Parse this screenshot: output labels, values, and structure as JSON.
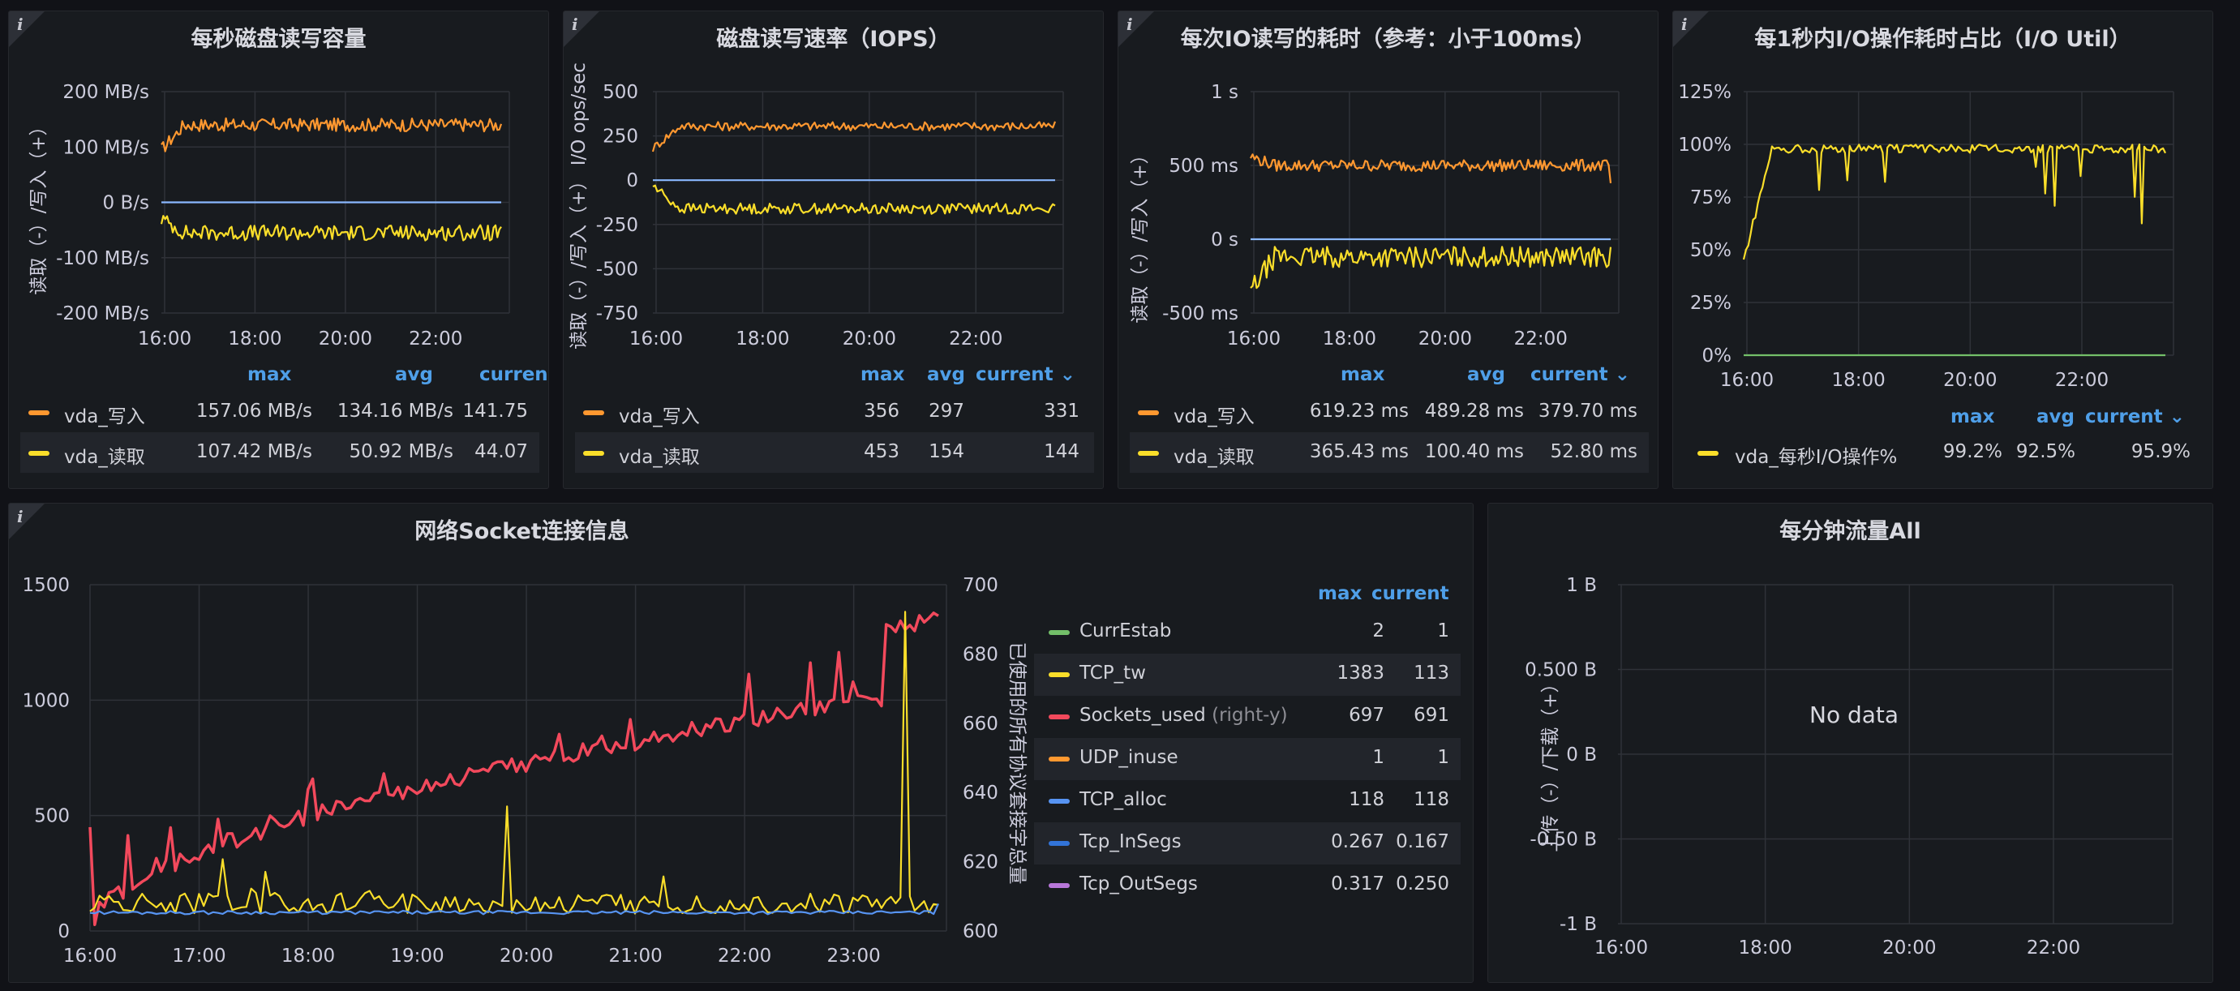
{
  "panels": {
    "disk_throughput": {
      "title": "每秒磁盘读写容量",
      "info_icon": "info-icon",
      "legend_headers": {
        "max": "max",
        "avg": "avg",
        "current": "curren"
      },
      "legend": [
        {
          "name": "vda_写入",
          "color": "#ff9830",
          "max": "157.06 MB/s",
          "avg": "134.16 MB/s",
          "current": "141.75"
        },
        {
          "name": "vda_读取",
          "color": "#fade2a",
          "max": "107.42 MB/s",
          "avg": "50.92 MB/s",
          "current": "44.07"
        }
      ]
    },
    "disk_iops": {
      "title": "磁盘读写速率（IOPS）",
      "info_icon": "info-icon",
      "legend_headers": {
        "max": "max",
        "avg": "avg",
        "current": "current"
      },
      "legend": [
        {
          "name": "vda_写入",
          "color": "#ff9830",
          "max": "356",
          "avg": "297",
          "current": "331"
        },
        {
          "name": "vda_读取",
          "color": "#fade2a",
          "max": "453",
          "avg": "154",
          "current": "144"
        }
      ]
    },
    "io_latency": {
      "title": "每次IO读写的耗时（参考：小于100ms）",
      "info_icon": "info-icon",
      "legend_headers": {
        "max": "max",
        "avg": "avg",
        "current": "current"
      },
      "legend": [
        {
          "name": "vda_写入",
          "color": "#ff9830",
          "max": "619.23 ms",
          "avg": "489.28 ms",
          "current": "379.70 ms"
        },
        {
          "name": "vda_读取",
          "color": "#fade2a",
          "max": "365.43 ms",
          "avg": "100.40 ms",
          "current": "52.80 ms"
        }
      ]
    },
    "io_util": {
      "title": "每1秒内I/O操作耗时占比（I/O Util）",
      "info_icon": "info-icon",
      "legend_headers": {
        "max": "max",
        "avg": "avg",
        "current": "current"
      },
      "legend": [
        {
          "name": "vda_每秒I/O操作%",
          "color": "#fade2a",
          "max": "99.2%",
          "avg": "92.5%",
          "current": "95.9%"
        }
      ]
    },
    "socket": {
      "title": "网络Socket连接信息",
      "info_icon": "info-icon",
      "legend_headers": {
        "max": "max",
        "current": "current"
      },
      "legend": [
        {
          "name": "CurrEstab",
          "hint": "",
          "color": "#73bf69",
          "max": "2",
          "current": "1"
        },
        {
          "name": "TCP_tw",
          "hint": "",
          "color": "#fade2a",
          "max": "1383",
          "current": "113"
        },
        {
          "name": "Sockets_used",
          "hint": "(right-y)",
          "color": "#f2495c",
          "max": "697",
          "current": "691"
        },
        {
          "name": "UDP_inuse",
          "hint": "",
          "color": "#ff9830",
          "max": "1",
          "current": "1"
        },
        {
          "name": "TCP_alloc",
          "hint": "",
          "color": "#5794f2",
          "max": "118",
          "current": "118"
        },
        {
          "name": "Tcp_InSegs",
          "hint": "",
          "color": "#3274d9",
          "max": "0.267",
          "current": "0.167"
        },
        {
          "name": "Tcp_OutSegs",
          "hint": "",
          "color": "#b877d9",
          "max": "0.317",
          "current": "0.250"
        }
      ]
    },
    "traffic": {
      "title": "每分钟流量All",
      "no_data": "No data"
    }
  },
  "chart_data": [
    {
      "id": "disk_throughput",
      "type": "line",
      "title": "每秒磁盘读写容量",
      "ylabel": "读取（-）/写入（+）",
      "y_unit": "MB/s",
      "ylim": [
        -200,
        200
      ],
      "y_ticks": [
        "200 MB/s",
        "100 MB/s",
        "0 B/s",
        "-100 MB/s",
        "-200 MB/s"
      ],
      "x_ticks": [
        "16:00",
        "18:00",
        "20:00",
        "22:00"
      ],
      "xlim": [
        "15:58",
        "23:57"
      ],
      "series": [
        {
          "name": "vda_写入",
          "color": "#ff9830",
          "approx_level": 140,
          "noise": 12,
          "start": 95,
          "end": 141.75
        },
        {
          "name": "vda_读取",
          "color": "#fade2a",
          "approx_level": -55,
          "noise": 14,
          "start": -30,
          "end": -44.07
        },
        {
          "name": "zero",
          "color": "#8ab8ff",
          "approx_level": 0,
          "noise": 0
        }
      ]
    },
    {
      "id": "disk_iops",
      "type": "line",
      "title": "磁盘读写速率（IOPS）",
      "ylabel": "读取（-）/写入（+） I/O ops/sec",
      "ylim": [
        -750,
        500
      ],
      "y_ticks": [
        "500",
        "250",
        "0",
        "-250",
        "-500",
        "-750"
      ],
      "x_ticks": [
        "16:00",
        "18:00",
        "20:00",
        "22:00"
      ],
      "series": [
        {
          "name": "vda_写入",
          "color": "#ff9830",
          "approx_level": 305,
          "noise": 25,
          "start": 180,
          "end": 331
        },
        {
          "name": "vda_读取",
          "color": "#fade2a",
          "approx_level": -160,
          "noise": 30,
          "start": -30,
          "end": -144
        },
        {
          "name": "zero",
          "color": "#8ab8ff",
          "approx_level": 0,
          "noise": 0
        }
      ]
    },
    {
      "id": "io_latency",
      "type": "line",
      "title": "每次IO读写的耗时（参考：小于100ms）",
      "ylabel": "读取（-）/写入（+）",
      "y_unit": "ms",
      "ylim": [
        -500,
        1000
      ],
      "y_ticks": [
        "1 s",
        "500 ms",
        "0 s",
        "-500 ms"
      ],
      "x_ticks": [
        "16:00",
        "18:00",
        "20:00",
        "22:00"
      ],
      "series": [
        {
          "name": "vda_写入",
          "color": "#ff9830",
          "approx_level": 500,
          "noise": 40,
          "start": 560,
          "end": 379.7
        },
        {
          "name": "vda_读取",
          "color": "#fade2a",
          "approx_level": -120,
          "noise": 70,
          "start": -350,
          "end": -52.8
        },
        {
          "name": "zero",
          "color": "#8ab8ff",
          "approx_level": 0,
          "noise": 0
        }
      ]
    },
    {
      "id": "io_util",
      "type": "line",
      "title": "每1秒内I/O操作耗时占比（I/O Util）",
      "ylim": [
        0,
        125
      ],
      "y_ticks": [
        "125%",
        "100%",
        "75%",
        "50%",
        "25%",
        "0%"
      ],
      "x_ticks": [
        "16:00",
        "18:00",
        "20:00",
        "22:00"
      ],
      "series": [
        {
          "name": "vda_每秒I/O操作%",
          "color": "#fade2a",
          "approx_level": 98,
          "noise": 2,
          "start": 45,
          "end": 95.9
        },
        {
          "name": "baseline",
          "color": "#73bf69",
          "approx_level": 0,
          "noise": 0
        }
      ]
    },
    {
      "id": "socket",
      "type": "line",
      "title": "网络Socket连接信息",
      "ylim": [
        0,
        1500
      ],
      "y_ticks": [
        "1500",
        "1000",
        "500",
        "0"
      ],
      "y2label": "已使用的所有协议套接字总量",
      "y2lim": [
        600,
        700
      ],
      "y2_ticks": [
        "700",
        "680",
        "660",
        "640",
        "620",
        "600"
      ],
      "x_ticks": [
        "16:00",
        "17:00",
        "18:00",
        "19:00",
        "20:00",
        "21:00",
        "22:00",
        "23:00"
      ],
      "series": [
        {
          "name": "Sockets_used",
          "axis": "right",
          "color": "#f2495c",
          "start": 630,
          "end": 691,
          "max": 697
        },
        {
          "name": "TCP_tw",
          "axis": "left",
          "color": "#fade2a",
          "approx_level": 120,
          "max": 1383,
          "end": 113
        },
        {
          "name": "TCP_alloc",
          "axis": "left",
          "color": "#5794f2",
          "approx_level": 80,
          "end": 118
        }
      ]
    },
    {
      "id": "traffic",
      "type": "line",
      "title": "每分钟流量All",
      "ylabel": "上传（-）/下载（+）",
      "ylim": [
        -1,
        1
      ],
      "y_ticks": [
        "1 B",
        "0.500 B",
        "0 B",
        "-0.50 B",
        "-1 B"
      ],
      "x_ticks": [
        "16:00",
        "18:00",
        "20:00",
        "22:00"
      ],
      "series": []
    }
  ]
}
